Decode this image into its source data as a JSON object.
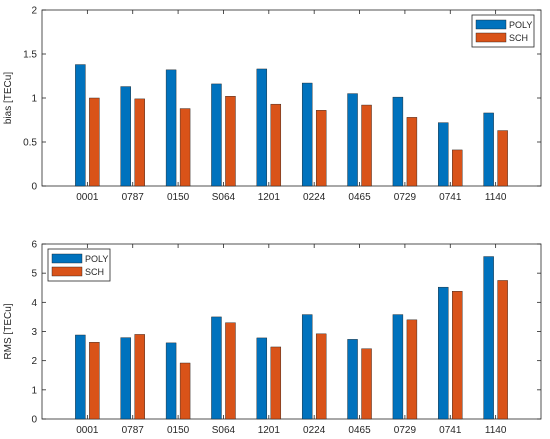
{
  "chart_data": [
    {
      "type": "bar",
      "ylabel": "bias [TECu]",
      "xlabel": "",
      "ylim": [
        0,
        2
      ],
      "yticks": [
        0,
        0.5,
        1,
        1.5,
        2
      ],
      "ytick_labels": [
        "0",
        "0.5",
        "1",
        "1.5",
        "2"
      ],
      "grid": false,
      "legend_position": "top-right",
      "categories": [
        "0001",
        "0787",
        "0150",
        "S064",
        "1201",
        "0224",
        "0465",
        "0729",
        "0741",
        "1140"
      ],
      "series": [
        {
          "name": "POLY",
          "color": "#0072BD",
          "values": [
            1.38,
            1.13,
            1.32,
            1.16,
            1.33,
            1.17,
            1.05,
            1.01,
            0.72,
            0.83
          ]
        },
        {
          "name": "SCH",
          "color": "#D95319",
          "values": [
            1.0,
            0.99,
            0.88,
            1.02,
            0.93,
            0.86,
            0.92,
            0.78,
            0.41,
            0.63
          ]
        }
      ]
    },
    {
      "type": "bar",
      "ylabel": "RMS [TECu]",
      "xlabel": "",
      "ylim": [
        0,
        6
      ],
      "yticks": [
        0,
        1,
        2,
        3,
        4,
        5,
        6
      ],
      "ytick_labels": [
        "0",
        "1",
        "2",
        "3",
        "4",
        "5",
        "6"
      ],
      "grid": false,
      "legend_position": "top-left",
      "categories": [
        "0001",
        "0787",
        "0150",
        "S064",
        "1201",
        "0224",
        "0465",
        "0729",
        "0741",
        "1140"
      ],
      "series": [
        {
          "name": "POLY",
          "color": "#0072BD",
          "values": [
            2.88,
            2.79,
            2.61,
            3.5,
            2.78,
            3.58,
            2.73,
            3.58,
            4.52,
            5.57
          ]
        },
        {
          "name": "SCH",
          "color": "#D95319",
          "values": [
            2.63,
            2.9,
            1.92,
            3.3,
            2.47,
            2.92,
            2.41,
            3.4,
            4.38,
            4.75
          ]
        }
      ]
    }
  ]
}
